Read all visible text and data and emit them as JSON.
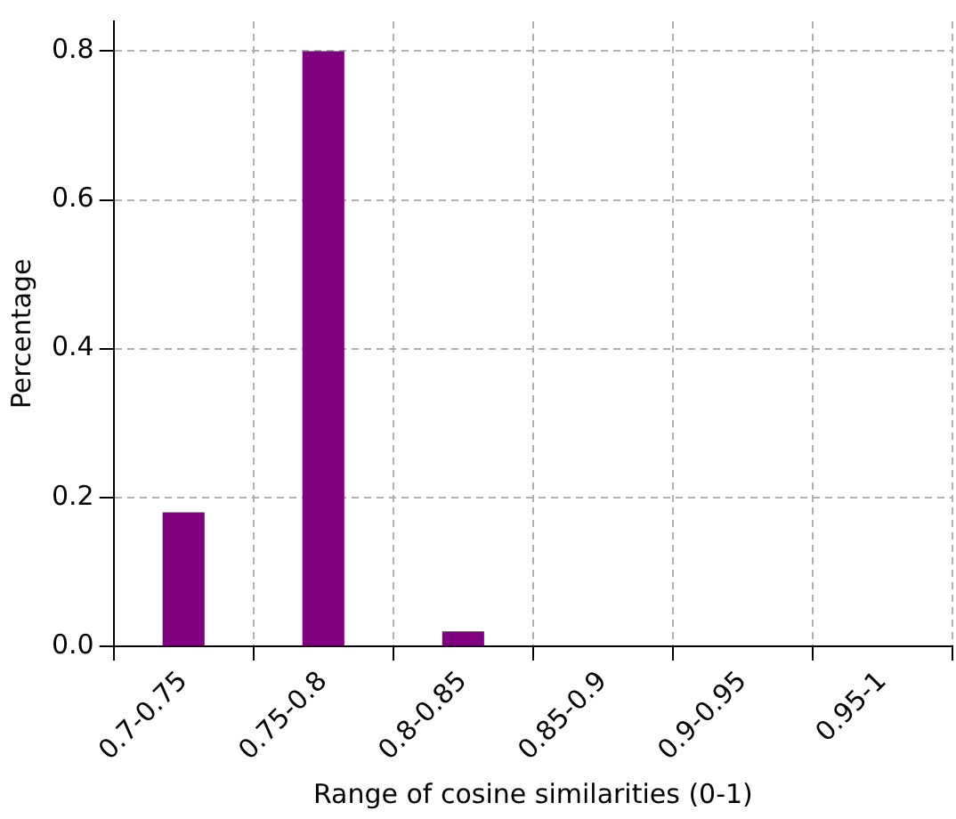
{
  "chart_data": {
    "type": "bar",
    "xlabel": "Range of cosine similarities (0-1)",
    "ylabel": "Percentage",
    "categories": [
      "0.7-0.75",
      "0.75-0.8",
      "0.8-0.85",
      "0.85-0.9",
      "0.9-0.95",
      "0.95-1"
    ],
    "series": [
      {
        "color": "#800080",
        "values": [
          0.18,
          0.8,
          0.02,
          0,
          0,
          0
        ]
      }
    ],
    "ylim": [
      0,
      0.84
    ],
    "yticks": [
      {
        "value": 0,
        "label": "0.0"
      },
      {
        "value": 0.2,
        "label": "0.2"
      },
      {
        "value": 0.4,
        "label": "0.4"
      },
      {
        "value": 0.6,
        "label": "0.6"
      },
      {
        "value": 0.8,
        "label": "0.8"
      }
    ],
    "grid": true
  }
}
